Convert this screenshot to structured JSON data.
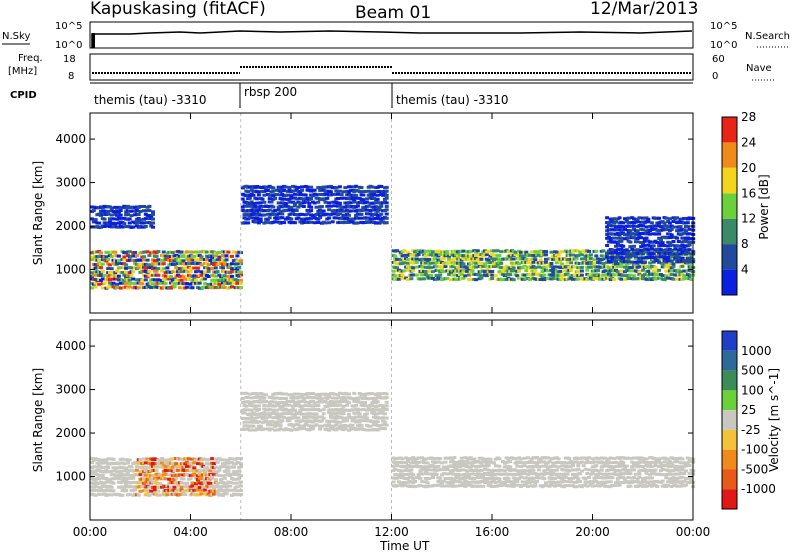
{
  "header": {
    "radar": "Kapuskasing (fitACF)",
    "beam": "Beam 01",
    "date": "12/Mar/2013"
  },
  "top_panels": {
    "nsky_label": "N.Sky",
    "nsky_ticks": [
      "10^5",
      "10^0"
    ],
    "nsearch_label": "N.Search",
    "nsearch_ticks": [
      "10^5",
      "10^0"
    ],
    "freq_label_1": "Freq.",
    "freq_label_2": "[MHz]",
    "freq_ticks": [
      "18",
      "8"
    ],
    "nave_label": "Nave",
    "nave_ticks": [
      "60",
      "0"
    ],
    "cpid_label": "CPID",
    "cpid_segments": [
      {
        "label": "themis (tau) -3310",
        "start_h": 0,
        "end_h": 6
      },
      {
        "label": "rbsp 200",
        "start_h": 6,
        "end_h": 12
      },
      {
        "label": "themis (tau) -3310",
        "start_h": 12,
        "end_h": 24
      }
    ]
  },
  "x_axis": {
    "label": "Time UT",
    "ticks": [
      "00:00",
      "04:00",
      "08:00",
      "12:00",
      "16:00",
      "20:00",
      "00:00"
    ]
  },
  "chart_data": [
    {
      "type": "heatmap",
      "name": "power",
      "ylabel": "Slant Range [km]",
      "yticks": [
        "1000",
        "2000",
        "3000",
        "4000"
      ],
      "ylim": [
        0,
        4600
      ],
      "xlim_hours": [
        0,
        24
      ],
      "colorbar_label": "Power [dB]",
      "colorbar_ticks": [
        "4",
        "8",
        "12",
        "16",
        "20",
        "24",
        "28"
      ],
      "colorbar_colors": [
        "#0b1fe0",
        "#214a9c",
        "#3a8a6a",
        "#6ad13a",
        "#f2d51c",
        "#f08a1a",
        "#e82416"
      ],
      "bands": [
        {
          "from_h": 0.0,
          "to_h": 6.0,
          "lower_km": 600,
          "upper_km": 1500,
          "level": "mixed-high"
        },
        {
          "from_h": 0.0,
          "to_h": 2.5,
          "lower_km": 2000,
          "upper_km": 2500,
          "level": "low"
        },
        {
          "from_h": 6.0,
          "to_h": 11.8,
          "lower_km": 2100,
          "upper_km": 3000,
          "level": "low"
        },
        {
          "from_h": 12.0,
          "to_h": 24.0,
          "lower_km": 800,
          "upper_km": 1500,
          "level": "mid"
        },
        {
          "from_h": 20.5,
          "to_h": 24.0,
          "lower_km": 1200,
          "upper_km": 2300,
          "level": "low"
        }
      ]
    },
    {
      "type": "heatmap",
      "name": "velocity",
      "ylabel": "Slant Range [km]",
      "yticks": [
        "1000",
        "2000",
        "3000",
        "4000"
      ],
      "ylim": [
        0,
        4600
      ],
      "xlim_hours": [
        0,
        24
      ],
      "colorbar_label": "Velocity [m s^-1]",
      "colorbar_ticks": [
        "1000",
        "500",
        "100",
        "25",
        "-25",
        "-100",
        "-500",
        "-1000"
      ],
      "colorbar_colors": [
        "#1f3fc8",
        "#2d6a9a",
        "#3c8c5a",
        "#6bd13a",
        "#c8c8c0",
        "#f2c23a",
        "#f08a1a",
        "#e85a1a",
        "#e01818"
      ],
      "bands": [
        {
          "from_h": 0.0,
          "to_h": 6.0,
          "lower_km": 600,
          "upper_km": 1500,
          "level": "mostly grey, orange-red 1:45-5:00"
        },
        {
          "from_h": 6.0,
          "to_h": 11.8,
          "lower_km": 2100,
          "upper_km": 3000,
          "level": "grey"
        },
        {
          "from_h": 12.0,
          "to_h": 24.0,
          "lower_km": 800,
          "upper_km": 1500,
          "level": "grey"
        }
      ]
    }
  ]
}
